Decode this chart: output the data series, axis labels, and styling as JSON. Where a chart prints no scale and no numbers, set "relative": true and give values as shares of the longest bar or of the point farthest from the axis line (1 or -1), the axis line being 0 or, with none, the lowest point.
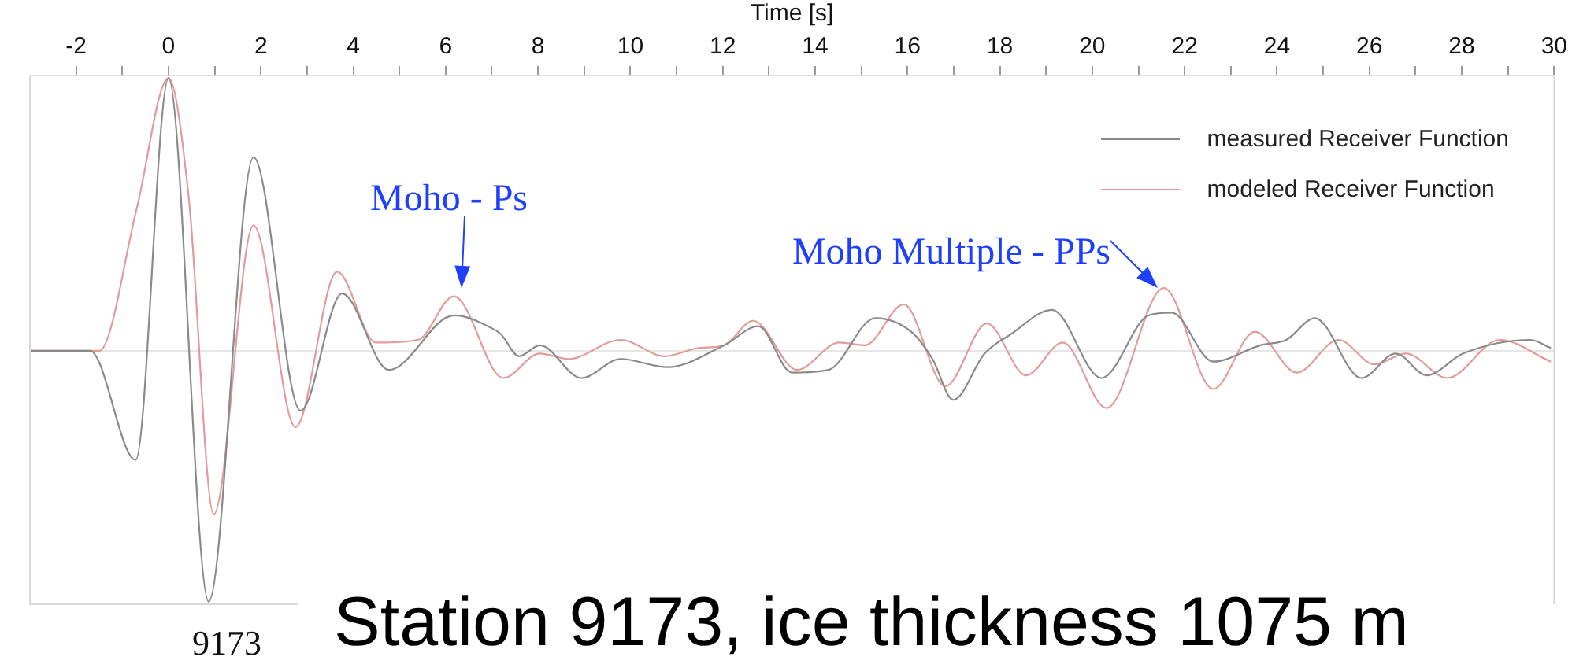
{
  "chart_data": {
    "type": "line",
    "title": "Station 9173, ice thickness 1075 m",
    "xlabel": "Time [s]",
    "relative": true,
    "legend": "top right",
    "xlim": [
      -3,
      30
    ],
    "xticks": [
      -2,
      {
        "value": -1,
        "label": null
      },
      0,
      {
        "value": 1,
        "label": null
      },
      2,
      {
        "value": 3,
        "label": null
      },
      4,
      {
        "value": 5,
        "label": null
      },
      6,
      {
        "value": 7,
        "label": null
      },
      8,
      {
        "value": 9,
        "label": null
      },
      10,
      {
        "value": 11,
        "label": null
      },
      12,
      {
        "value": 13,
        "label": null
      },
      14,
      {
        "value": 15,
        "label": null
      },
      16,
      {
        "value": 17,
        "label": null
      },
      18,
      {
        "value": 19,
        "label": null
      },
      20,
      {
        "value": 21,
        "label": null
      },
      22,
      {
        "value": 23,
        "label": null
      },
      24,
      {
        "value": 25,
        "label": null
      },
      26,
      {
        "value": 27,
        "label": null
      },
      28,
      {
        "value": 29,
        "label": null
      },
      30
    ],
    "annotations": [
      "Moho - Ps",
      "Moho Multiple - PPs",
      "9173"
    ],
    "series": [
      {
        "name": "measured Receiver Function",
        "color": "#8a8a8a",
        "x": [
          -3,
          -1.7,
          -0.71,
          0,
          0.87,
          1.84,
          2.86,
          3.76,
          4.77,
          6.18,
          7.03,
          7.2,
          7.59,
          8.04,
          8.94,
          9.79,
          10.8,
          12.03,
          12.77,
          13.5,
          14.29,
          15.3,
          16.08,
          16.54,
          16.99,
          17.67,
          18.23,
          19.13,
          20.2,
          21.22,
          21.72,
          22.62,
          23.64,
          24.2,
          24.82,
          25.83,
          26.57,
          27.24,
          28.03,
          29.49,
          29.93
        ],
        "values": [
          0,
          0,
          -0.4,
          1,
          -0.92,
          0.71,
          -0.22,
          0.21,
          -0.07,
          0.13,
          0.08,
          0.06,
          -0.02,
          0.02,
          -0.1,
          -0.03,
          -0.06,
          0.02,
          0.09,
          -0.08,
          -0.07,
          0.12,
          0.07,
          -0.03,
          -0.18,
          -0.01,
          0.06,
          0.15,
          -0.1,
          0.13,
          0.14,
          -0.04,
          0.02,
          0.04,
          0.12,
          -0.1,
          -0.01,
          -0.09,
          -0.01,
          0.04,
          0.01
        ]
      },
      {
        "name": "modeled Receiver Function",
        "color": "#e39a9a",
        "x": [
          -3,
          -1.5,
          -0.69,
          0,
          0.44,
          0.98,
          1.84,
          2.75,
          3.65,
          4.49,
          5.4,
          6.18,
          7.25,
          8.04,
          8.66,
          9.79,
          10.74,
          11.48,
          12.03,
          12.66,
          13.61,
          14.52,
          15.08,
          15.92,
          16.82,
          17.72,
          18.57,
          19.36,
          20.31,
          21.55,
          22.62,
          23.52,
          24.43,
          25.33,
          26.11,
          26.79,
          27.69,
          28.82,
          29.93
        ],
        "values": [
          0,
          0,
          0.52,
          1,
          0.56,
          -0.6,
          0.46,
          -0.28,
          0.29,
          0.03,
          0.04,
          0.2,
          -0.1,
          -0.01,
          -0.03,
          0.04,
          -0.02,
          0.01,
          0.02,
          0.11,
          -0.07,
          0.03,
          0.02,
          0.17,
          -0.13,
          0.1,
          -0.09,
          0.03,
          -0.21,
          0.23,
          -0.14,
          0.07,
          -0.08,
          0.04,
          -0.05,
          -0.01,
          -0.1,
          0.04,
          -0.04
        ]
      }
    ]
  }
}
